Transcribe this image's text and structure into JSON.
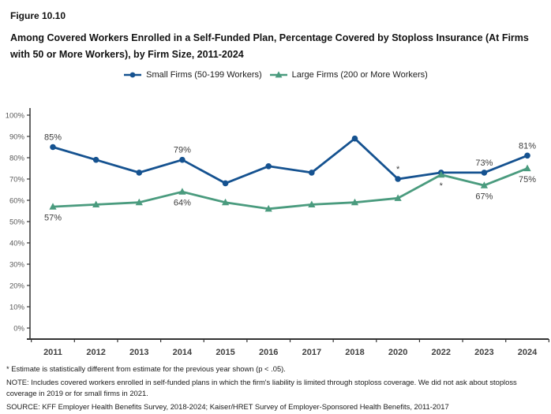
{
  "figure": {
    "label": "Figure 10.10",
    "title": "Among Covered Workers Enrolled in a Self-Funded Plan, Percentage Covered by Stoploss Insurance (At Firms with 50 or More Workers), by Firm Size, 2011-2024"
  },
  "legend": [
    {
      "label": "Small Firms (50-199 Workers)",
      "color": "#155290",
      "marker": "circle"
    },
    {
      "label": "Large Firms (200 or More Workers)",
      "color": "#4A9B7E",
      "marker": "triangle"
    }
  ],
  "chart_data": {
    "type": "line",
    "title": "",
    "xlabel": "",
    "ylabel": "",
    "grid": false,
    "legend_position": "top",
    "categories": [
      "2011",
      "2012",
      "2013",
      "2014",
      "2015",
      "2016",
      "2017",
      "2018",
      "2020",
      "2022",
      "2023",
      "2024"
    ],
    "ylim": [
      0,
      100
    ],
    "ytick_step": 10,
    "ytick_labels": [
      "0%",
      "10%",
      "20%",
      "30%",
      "40%",
      "50%",
      "60%",
      "70%",
      "80%",
      "90%",
      "100%"
    ],
    "series": [
      {
        "id": "small-firms",
        "name": "Small Firms (50-199 Workers)",
        "color": "#155290",
        "marker": "circle",
        "label_position": "above",
        "values": [
          85,
          79,
          73,
          79,
          68,
          76,
          73,
          89,
          70,
          73,
          73,
          81
        ],
        "labels": [
          "85%",
          "",
          "",
          "79%",
          "",
          "",
          "",
          "",
          "*",
          "",
          "73%",
          "81%"
        ]
      },
      {
        "id": "large-firms",
        "name": "Large Firms (200 or More Workers)",
        "color": "#4A9B7E",
        "marker": "triangle",
        "label_position": "below",
        "values": [
          57,
          58,
          59,
          64,
          59,
          56,
          58,
          59,
          61,
          72,
          67,
          75
        ],
        "labels": [
          "57%",
          "",
          "",
          "64%",
          "",
          "",
          "",
          "",
          "",
          "*",
          "67%",
          "75%"
        ]
      }
    ],
    "annotations": [
      {
        "text": "*",
        "series": "small-firms",
        "category": "2020",
        "meaning": "statistically different from previous year shown"
      },
      {
        "text": "*",
        "series": "large-firms",
        "category": "2022",
        "meaning": "statistically different from previous year shown"
      }
    ]
  },
  "footnotes": [
    "* Estimate is statistically different from estimate for the previous year shown (p < .05).",
    "NOTE: Includes covered workers enrolled in self-funded plans in which the firm's liability is limited through stoploss coverage. We did not ask about stoploss coverage in 2019 or for small firms in 2021.",
    "SOURCE: KFF Employer Health Benefits Survey, 2018-2024; Kaiser/HRET Survey of Employer-Sponsored Health Benefits, 2011-2017"
  ]
}
